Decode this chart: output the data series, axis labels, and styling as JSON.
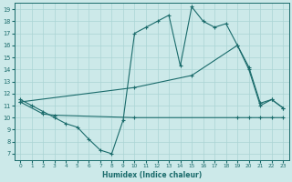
{
  "xlabel": "Humidex (Indice chaleur)",
  "bg_color": "#cce9e9",
  "line_color": "#1a6b6b",
  "grid_color": "#aad4d4",
  "xlim": [
    -0.5,
    23.5
  ],
  "ylim": [
    6.5,
    19.5
  ],
  "xticks": [
    0,
    1,
    2,
    3,
    4,
    5,
    6,
    7,
    8,
    9,
    10,
    11,
    12,
    13,
    14,
    15,
    16,
    17,
    18,
    19,
    20,
    21,
    22,
    23
  ],
  "yticks": [
    7,
    8,
    9,
    10,
    11,
    12,
    13,
    14,
    15,
    16,
    17,
    18,
    19
  ],
  "line1_x": [
    0,
    1,
    2,
    3,
    4,
    5,
    6,
    7,
    8,
    9,
    10,
    11,
    12,
    13,
    14,
    15,
    16,
    17,
    18,
    19,
    20,
    21,
    22,
    23
  ],
  "line1_y": [
    11.5,
    11.0,
    10.5,
    10.0,
    9.5,
    9.2,
    8.2,
    7.3,
    7.0,
    9.8,
    17.0,
    17.5,
    18.0,
    18.5,
    14.3,
    19.2,
    18.0,
    17.5,
    17.8,
    16.0,
    14.0,
    11.0,
    11.5,
    10.8
  ],
  "line2_x": [
    0,
    2,
    3,
    10,
    19,
    20,
    21,
    22,
    23
  ],
  "line2_y": [
    11.3,
    10.3,
    10.2,
    10.0,
    10.0,
    10.0,
    10.0,
    10.0,
    10.0
  ],
  "line3_x": [
    0,
    10,
    15,
    19,
    20,
    21,
    22,
    23
  ],
  "line3_y": [
    11.3,
    12.5,
    13.5,
    16.0,
    14.2,
    11.2,
    11.5,
    10.8
  ]
}
